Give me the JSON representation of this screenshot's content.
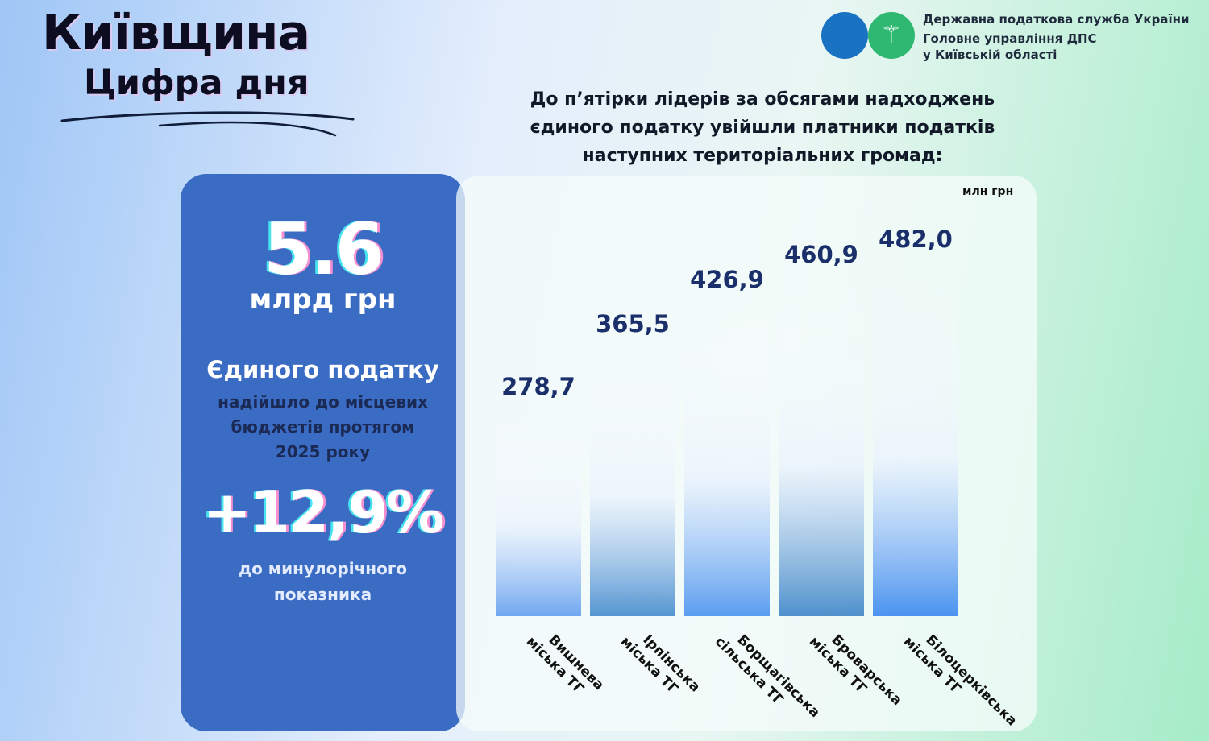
{
  "header": {
    "title_line1": "Київщина",
    "title_line2": "Цифра дня"
  },
  "org": {
    "line1": "Державна податкова служба України",
    "line2": "Головне управління ДПС",
    "line3": "у Київській області",
    "logo_colors": [
      "#1a72c3",
      "#2fb872"
    ],
    "icon": "trident-icon"
  },
  "headline": {
    "line1": "До п’ятірки лідерів за обсягами надходжень",
    "line2": "єдиного податку увійшли платники податків",
    "line3": "наступних територіальних громад:"
  },
  "summary": {
    "total": "5.6",
    "total_unit": "млрд грн",
    "subject": "Єдиного податку",
    "desc_line1": "надійшло до місцевих",
    "desc_line2": "бюджетів протягом",
    "desc_line3": "2025 року",
    "growth": "+12,9%",
    "growth_note_line1": "до минулорічного",
    "growth_note_line2": "показника",
    "card_color": "#3b6cc4"
  },
  "chart_data": {
    "type": "bar",
    "unit": "млн грн",
    "categories": [
      [
        "Вишнева",
        "міська ТГ"
      ],
      [
        "Ірпінська",
        "міська ТГ"
      ],
      [
        "Борщагівська",
        "сільська ТГ"
      ],
      [
        "Броварська",
        "міська ТГ"
      ],
      [
        "Білоцерківська",
        "міська ТГ"
      ]
    ],
    "values": [
      278.7,
      365.5,
      426.9,
      460.9,
      482.0
    ],
    "value_labels": [
      "278,7",
      "365,5",
      "426,9",
      "460,9",
      "482,0"
    ],
    "bar_bottom_colors": [
      "#6fa7f0",
      "#5595d2",
      "#5b9df0",
      "#4e90cc",
      "#4b93f0"
    ],
    "grid": false,
    "legend": "none"
  }
}
